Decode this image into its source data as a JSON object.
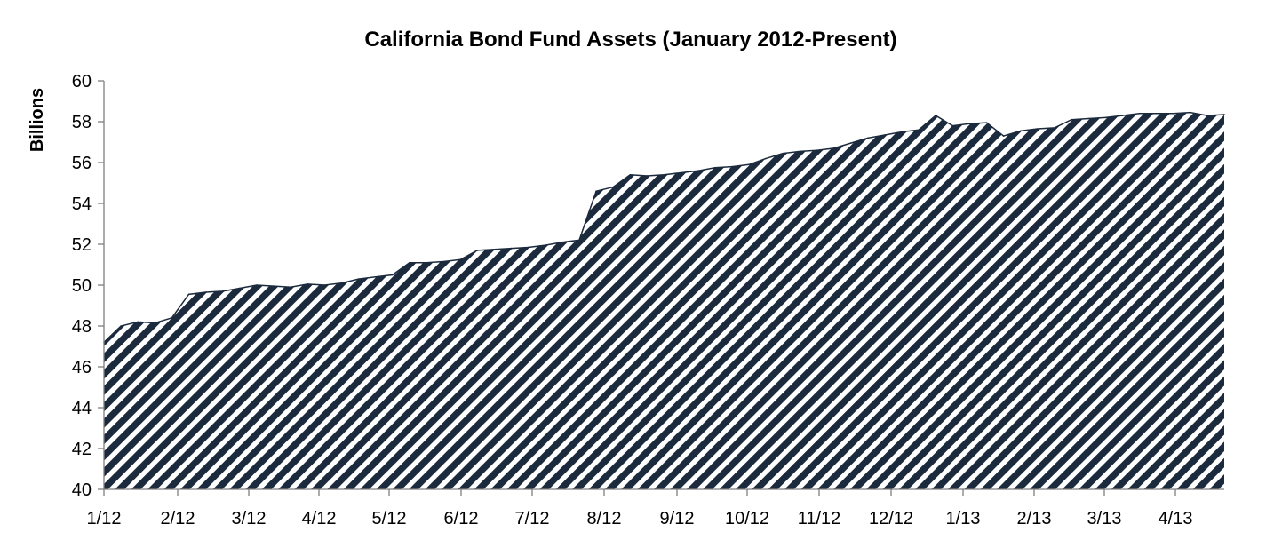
{
  "chart_data": {
    "type": "area",
    "title": "California Bond Fund Assets (January 2012-Present)",
    "xlabel": "",
    "ylabel": "Billions",
    "ylim": [
      40,
      60
    ],
    "yticks": [
      40,
      42,
      44,
      46,
      48,
      50,
      52,
      54,
      56,
      58,
      60
    ],
    "xtick_labels": [
      "1/12",
      "2/12",
      "3/12",
      "4/12",
      "5/12",
      "6/12",
      "7/12",
      "8/12",
      "9/12",
      "10/12",
      "11/12",
      "12/12",
      "1/13",
      "2/13",
      "3/13",
      "4/13"
    ],
    "x_unit": "weeks since first observation",
    "grid": false,
    "legend": "none",
    "fill": "diagonal-hatch",
    "colors": {
      "hatch": "#1c2a3e",
      "axis": "#7f7f7f",
      "background": "#ffffff"
    },
    "x": [
      0,
      1,
      2,
      3,
      4,
      5,
      6,
      7,
      8,
      9,
      10,
      11,
      12,
      13,
      14,
      15,
      16,
      17,
      18,
      19,
      20,
      21,
      22,
      23,
      24,
      25,
      26,
      27,
      28,
      29,
      30,
      31,
      32,
      33,
      34,
      35,
      36,
      37,
      38,
      39,
      40,
      41,
      42,
      43,
      44,
      45,
      46,
      47,
      48,
      49,
      50,
      51,
      52,
      53,
      54,
      55,
      56,
      57,
      58,
      59,
      60,
      61,
      62,
      63,
      64,
      65,
      66
    ],
    "values": [
      47.2,
      48.0,
      48.2,
      48.15,
      48.4,
      49.55,
      49.65,
      49.7,
      49.85,
      50.0,
      49.95,
      49.9,
      50.05,
      50.0,
      50.1,
      50.3,
      50.4,
      50.5,
      51.1,
      51.1,
      51.15,
      51.25,
      51.7,
      51.75,
      51.8,
      51.85,
      51.95,
      52.1,
      52.2,
      54.6,
      54.8,
      55.4,
      55.35,
      55.4,
      55.5,
      55.6,
      55.75,
      55.8,
      55.9,
      56.2,
      56.45,
      56.55,
      56.6,
      56.7,
      56.95,
      57.2,
      57.35,
      57.5,
      57.6,
      58.3,
      57.8,
      57.9,
      57.95,
      57.3,
      57.55,
      57.65,
      57.7,
      58.1,
      58.15,
      58.2,
      58.3,
      58.4,
      58.4,
      58.4,
      58.45,
      58.3,
      58.35
    ]
  }
}
